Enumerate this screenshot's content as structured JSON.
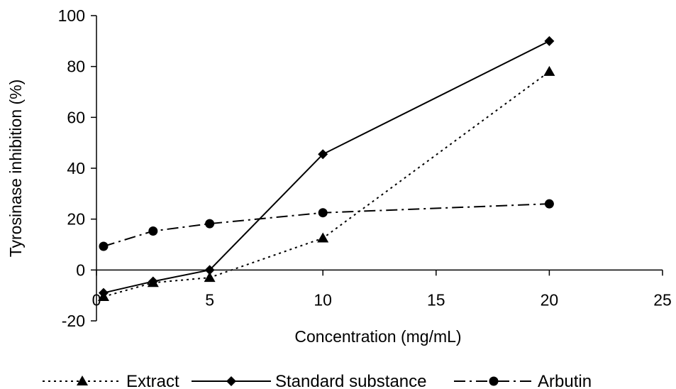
{
  "chart_data": {
    "type": "line",
    "xlabel": "Concentration (mg/mL)",
    "ylabel": "Tyrosinase inhibition (%)",
    "xlim": [
      0,
      25
    ],
    "ylim": [
      -20,
      100
    ],
    "xticks": [
      0,
      5,
      10,
      15,
      20,
      25
    ],
    "yticks": [
      -20,
      0,
      20,
      40,
      60,
      80,
      100
    ],
    "grid": false,
    "legend_position": "bottom",
    "series": [
      {
        "name": "Extract",
        "marker": "triangle",
        "line_style": "dotted",
        "color": "#000000",
        "x": [
          0.3125,
          2.5,
          5,
          10,
          20
        ],
        "y": [
          -10.5,
          -5,
          -3,
          12.5,
          78
        ]
      },
      {
        "name": "Standard substance",
        "marker": "diamond",
        "line_style": "solid",
        "color": "#000000",
        "x": [
          0.3125,
          2.5,
          5,
          10,
          20
        ],
        "y": [
          -9,
          -4.5,
          0,
          45.5,
          90
        ]
      },
      {
        "name": "Arbutin",
        "marker": "circle",
        "line_style": "dash-dot",
        "color": "#000000",
        "x": [
          0.3125,
          2.5,
          5,
          10,
          20
        ],
        "y": [
          9.3,
          15.3,
          18.2,
          22.5,
          26
        ]
      }
    ]
  }
}
